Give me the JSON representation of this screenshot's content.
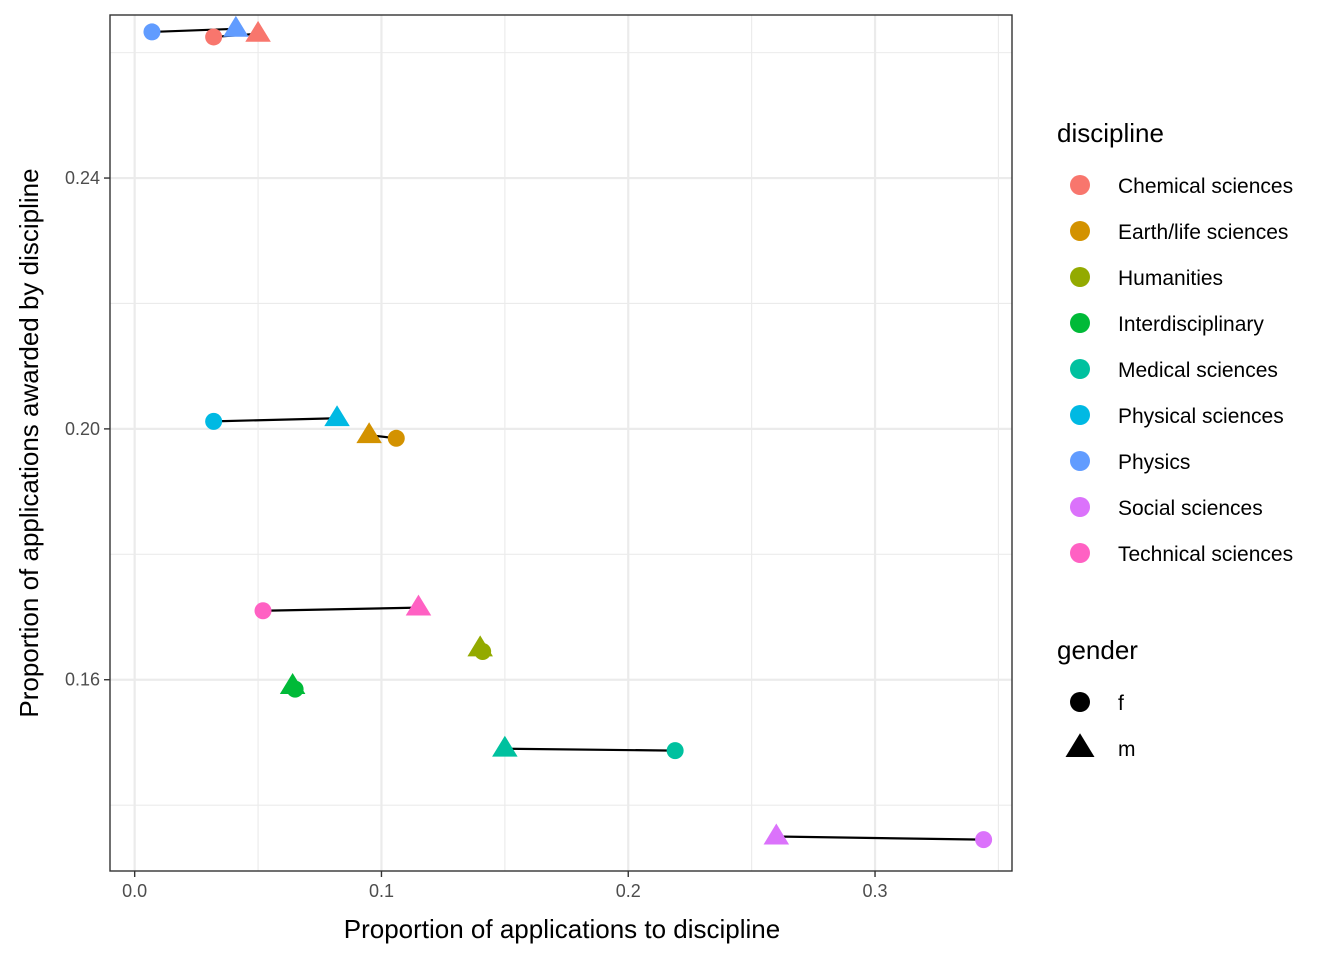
{
  "chart_data": {
    "type": "scatter",
    "title": "",
    "xlabel": "Proportion of applications to discipline",
    "ylabel": "Proportion of applications awarded by discipline",
    "xlim": [
      -0.01,
      0.3555
    ],
    "ylim": [
      0.1295,
      0.266
    ],
    "x_ticks": [
      0.0,
      0.1,
      0.2,
      0.3
    ],
    "x_tick_labels": [
      "0.0",
      "0.1",
      "0.2",
      "0.3"
    ],
    "y_ticks": [
      0.16,
      0.2,
      0.24
    ],
    "y_tick_labels": [
      "0.16",
      "0.20",
      "0.24"
    ],
    "grid": true,
    "legend_position": "right",
    "disciplines": [
      {
        "name": "Chemical sciences",
        "color": "#F8766D",
        "f": [
          0.032,
          0.2625
        ],
        "m": [
          0.05,
          0.263
        ]
      },
      {
        "name": "Earth/life sciences",
        "color": "#D39200",
        "f": [
          0.106,
          0.1985
        ],
        "m": [
          0.095,
          0.199
        ]
      },
      {
        "name": "Humanities",
        "color": "#93AA00",
        "f": [
          0.141,
          0.1645
        ],
        "m": [
          0.14,
          0.165
        ]
      },
      {
        "name": "Interdisciplinary",
        "color": "#00BA38",
        "f": [
          0.065,
          0.1585
        ],
        "m": [
          0.064,
          0.159
        ]
      },
      {
        "name": "Medical sciences",
        "color": "#00C19F",
        "f": [
          0.219,
          0.1487
        ],
        "m": [
          0.15,
          0.149
        ]
      },
      {
        "name": "Physical sciences",
        "color": "#00B9E3",
        "f": [
          0.032,
          0.2012
        ],
        "m": [
          0.082,
          0.2017
        ]
      },
      {
        "name": "Physics",
        "color": "#619CFF",
        "f": [
          0.007,
          0.2633
        ],
        "m": [
          0.041,
          0.2638
        ]
      },
      {
        "name": "Social sciences",
        "color": "#DB72FB",
        "f": [
          0.344,
          0.1345
        ],
        "m": [
          0.26,
          0.135
        ]
      },
      {
        "name": "Technical sciences",
        "color": "#FF61C3",
        "f": [
          0.052,
          0.171
        ],
        "m": [
          0.115,
          0.1715
        ]
      }
    ],
    "legend_discipline_title": "discipline",
    "legend_gender_title": "gender",
    "genders": [
      {
        "code": "f",
        "shape": "circle"
      },
      {
        "code": "m",
        "shape": "triangle"
      }
    ]
  }
}
